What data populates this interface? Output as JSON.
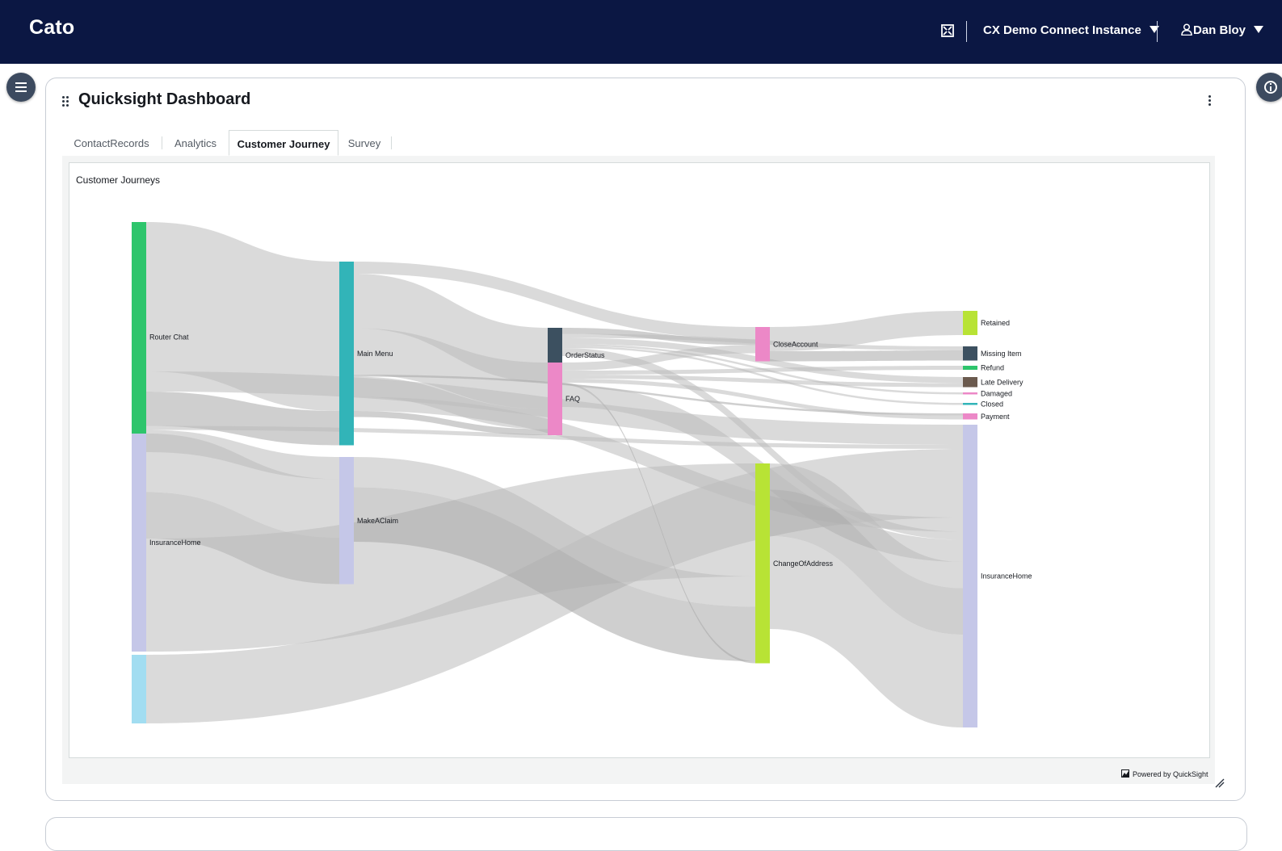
{
  "topbar": {
    "brand": "Cato",
    "instance_label": "CX Demo Connect Instance",
    "user_label": "Dan Bloy"
  },
  "card": {
    "title": "Quicksight Dashboard",
    "tabs": [
      {
        "label": "ContactRecords",
        "active": false
      },
      {
        "label": "Analytics",
        "active": false
      },
      {
        "label": "Customer Journey",
        "active": true
      },
      {
        "label": "Survey",
        "active": false
      }
    ]
  },
  "visual": {
    "title": "Customer Journeys",
    "powered_by": "Powered by QuickSight"
  },
  "colors": {
    "topbar": "#0b1743",
    "link": "#bbbbbb",
    "link_highlight": "#a8a8a8"
  },
  "chart_data": {
    "type": "sankey",
    "title": "Customer Journeys",
    "nodes": [
      {
        "id": "router_chat",
        "label": "Router Chat",
        "color": "#2ec56c"
      },
      {
        "id": "insurance_home_src",
        "label": "InsuranceHome",
        "color": "#c5c7e8"
      },
      {
        "id": "unlabeled_src",
        "label": "",
        "color": "#a2ddf1"
      },
      {
        "id": "main_menu",
        "label": "Main Menu",
        "color": "#32b4b8"
      },
      {
        "id": "make_a_claim",
        "label": "MakeAClaim",
        "color": "#c5c7e8"
      },
      {
        "id": "order_status",
        "label": "OrderStatus",
        "color": "#3c5060"
      },
      {
        "id": "faq",
        "label": "FAQ",
        "color": "#ec88c7"
      },
      {
        "id": "close_account",
        "label": "CloseAccount",
        "color": "#ec88c7"
      },
      {
        "id": "change_of_address",
        "label": "ChangeOfAddress",
        "color": "#b8e335"
      },
      {
        "id": "retained",
        "label": "Retained",
        "color": "#b8e335"
      },
      {
        "id": "missing_item",
        "label": "Missing Item",
        "color": "#3c5060"
      },
      {
        "id": "refund",
        "label": "Refund",
        "color": "#2ec56c"
      },
      {
        "id": "late_delivery",
        "label": "Late Delivery",
        "color": "#6b5a4e"
      },
      {
        "id": "damaged",
        "label": "Damaged",
        "color": "#ec88c7"
      },
      {
        "id": "closed",
        "label": "Closed",
        "color": "#32b4b8"
      },
      {
        "id": "payment",
        "label": "Payment",
        "color": "#ec88c7"
      },
      {
        "id": "insurance_home_dst",
        "label": "InsuranceHome",
        "color": "#c5c7e8"
      }
    ],
    "links": [
      {
        "source": "router_chat",
        "target": "main_menu",
        "value": 74,
        "highlight": false
      },
      {
        "source": "router_chat",
        "target": "insurance_home_dst",
        "value": 10,
        "highlight": false
      },
      {
        "source": "router_chat",
        "target": "main_menu",
        "value": 17,
        "highlight": true
      },
      {
        "source": "router_chat",
        "target": "insurance_home_dst",
        "value": 2,
        "highlight": false
      },
      {
        "source": "router_chat",
        "target": "make_a_claim",
        "value": 11,
        "highlight": false
      },
      {
        "source": "insurance_home_src",
        "target": "make_a_claim",
        "value": 29,
        "highlight": false
      },
      {
        "source": "insurance_home_src",
        "target": "make_a_claim",
        "value": 23,
        "highlight": true
      },
      {
        "source": "insurance_home_src",
        "target": "change_of_address",
        "value": 56,
        "highlight": false
      },
      {
        "source": "unlabeled_src",
        "target": "insurance_home_dst",
        "value": 34,
        "highlight": false
      },
      {
        "source": "main_menu",
        "target": "close_account",
        "value": 6,
        "highlight": false
      },
      {
        "source": "main_menu",
        "target": "order_status",
        "value": 27,
        "highlight": false
      },
      {
        "source": "main_menu",
        "target": "faq",
        "value": 23,
        "highlight": false
      },
      {
        "source": "main_menu",
        "target": "payment",
        "value": 1,
        "highlight": true
      },
      {
        "source": "main_menu",
        "target": "faq",
        "value": 10,
        "highlight": false
      },
      {
        "source": "main_menu",
        "target": "insurance_home_dst",
        "value": 7,
        "highlight": false
      },
      {
        "source": "main_menu",
        "target": "faq",
        "value": 3,
        "highlight": true
      },
      {
        "source": "make_a_claim",
        "target": "change_of_address",
        "value": 15,
        "highlight": false
      },
      {
        "source": "make_a_claim",
        "target": "change_of_address",
        "value": 27,
        "highlight": true
      },
      {
        "source": "order_status",
        "target": "close_account",
        "value": 3,
        "highlight": true
      },
      {
        "source": "order_status",
        "target": "missing_item",
        "value": 2,
        "highlight": false
      },
      {
        "source": "order_status",
        "target": "late_delivery",
        "value": 3,
        "highlight": false
      },
      {
        "source": "order_status",
        "target": "damaged",
        "value": 1,
        "highlight": false
      },
      {
        "source": "order_status",
        "target": "closed",
        "value": 1,
        "highlight": false
      },
      {
        "source": "order_status",
        "target": "insurance_home_dst",
        "value": 4,
        "highlight": false
      },
      {
        "source": "faq",
        "target": "close_account",
        "value": 4,
        "highlight": false
      },
      {
        "source": "faq",
        "target": "refund",
        "value": 2,
        "highlight": false
      },
      {
        "source": "faq",
        "target": "late_delivery",
        "value": 2,
        "highlight": false
      },
      {
        "source": "faq",
        "target": "payment",
        "value": 2,
        "highlight": false
      },
      {
        "source": "faq",
        "target": "change_of_address",
        "value": 1,
        "highlight": true
      },
      {
        "source": "faq",
        "target": "insurance_home_dst",
        "value": 11,
        "highlight": false
      },
      {
        "source": "close_account",
        "target": "retained",
        "value": 12,
        "highlight": false
      },
      {
        "source": "close_account",
        "target": "missing_item",
        "value": 5,
        "highlight": true
      },
      {
        "source": "change_of_address",
        "target": "insurance_home_dst",
        "value": 13,
        "highlight": false
      },
      {
        "source": "change_of_address",
        "target": "insurance_home_dst",
        "value": 23,
        "highlight": true
      },
      {
        "source": "change_of_address",
        "target": "insurance_home_dst",
        "value": 46,
        "highlight": false
      }
    ]
  }
}
